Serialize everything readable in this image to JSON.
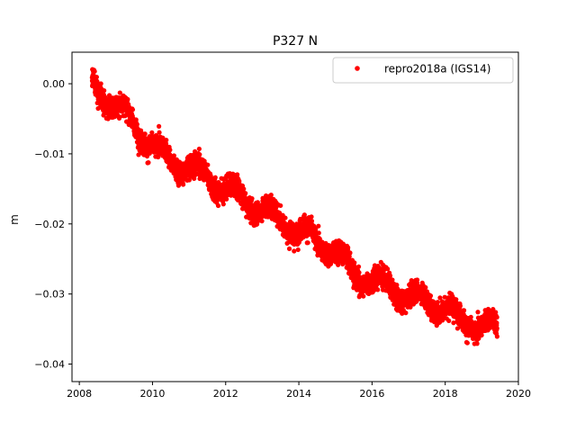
{
  "chart_data": {
    "type": "scatter",
    "title": "P327 N",
    "xlabel": "",
    "ylabel": "m",
    "xlim": [
      2007.8,
      2020.0
    ],
    "ylim": [
      -0.0425,
      0.0045
    ],
    "x_ticks": [
      2008,
      2010,
      2012,
      2014,
      2016,
      2018,
      2020
    ],
    "x_tick_labels": [
      "2008",
      "2010",
      "2012",
      "2014",
      "2016",
      "2018",
      "2020"
    ],
    "y_ticks": [
      0.0,
      -0.01,
      -0.02,
      -0.03,
      -0.04
    ],
    "y_tick_labels": [
      "0.00",
      "−0.01",
      "−0.02",
      "−0.03",
      "−0.04"
    ],
    "grid": false,
    "legend_position": "top-right",
    "series": [
      {
        "name": "repro2018a (IGS14)",
        "color": "#ff0000",
        "marker": "circle",
        "x_start": 2008.35,
        "x_end": 2019.42,
        "trend_points": [
          [
            2008.35,
            0.0
          ],
          [
            2008.8,
            -0.0025
          ],
          [
            2009.2,
            -0.004
          ],
          [
            2009.5,
            -0.006
          ],
          [
            2010.0,
            -0.009
          ],
          [
            2010.5,
            -0.011
          ],
          [
            2011.0,
            -0.012
          ],
          [
            2011.5,
            -0.013
          ],
          [
            2012.0,
            -0.015
          ],
          [
            2012.5,
            -0.0165
          ],
          [
            2013.0,
            -0.018
          ],
          [
            2013.5,
            -0.0195
          ],
          [
            2014.0,
            -0.021
          ],
          [
            2014.5,
            -0.0225
          ],
          [
            2015.0,
            -0.024
          ],
          [
            2015.5,
            -0.027
          ],
          [
            2016.0,
            -0.028
          ],
          [
            2016.5,
            -0.029
          ],
          [
            2017.0,
            -0.0305
          ],
          [
            2017.5,
            -0.031
          ],
          [
            2018.0,
            -0.032
          ],
          [
            2018.5,
            -0.034
          ],
          [
            2019.0,
            -0.0345
          ],
          [
            2019.42,
            -0.035
          ]
        ],
        "spread": 0.0025
      }
    ]
  }
}
